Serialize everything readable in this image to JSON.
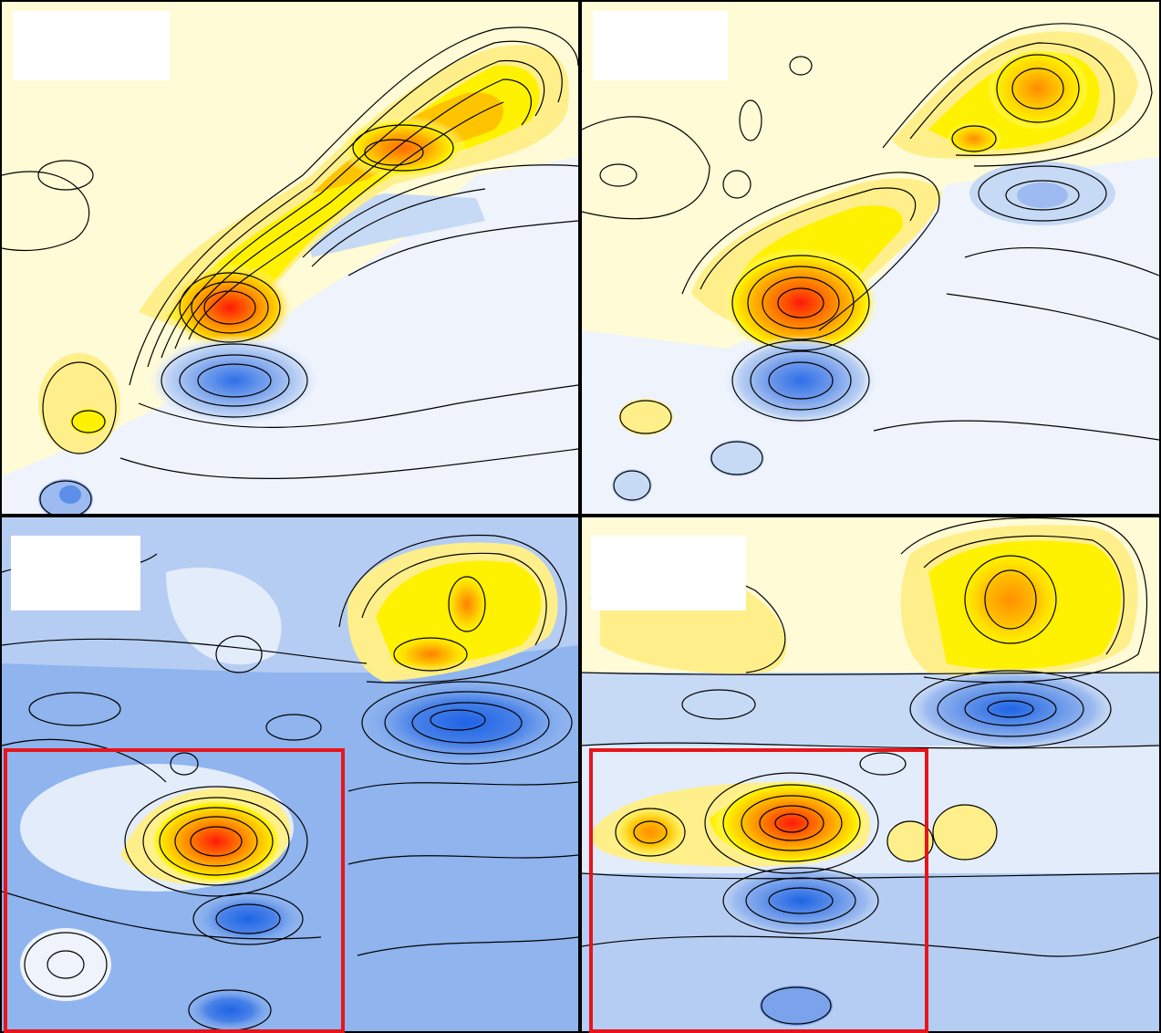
{
  "figure": {
    "panels": [
      {
        "id": "top-left",
        "background": "#fffbd6",
        "positive_peak_color": "#ff1a0a",
        "negative_peak_color": "#2e6fe8",
        "highlight_box": false
      },
      {
        "id": "top-right",
        "background": "#fffbd6",
        "positive_peak_color": "#ff1a0a",
        "negative_peak_color": "#2e6fe8",
        "highlight_box": false
      },
      {
        "id": "bottom-left",
        "background": "#8fb4ee",
        "positive_peak_color": "#ff1a0a",
        "negative_peak_color": "#2e6fe8",
        "highlight_box": true
      },
      {
        "id": "bottom-right",
        "background": "#c6d9f5",
        "positive_peak_color": "#ff1a0a",
        "negative_peak_color": "#2e6fe8",
        "highlight_box": true
      }
    ],
    "colors": {
      "contour_line": "#000000",
      "highlight_box": "#e8141b",
      "label_box": "#ffffff",
      "colormap": [
        "#1e5fe0",
        "#5d8fe8",
        "#9dbbf0",
        "#d3e2f8",
        "#f4f7fd",
        "#fffbd6",
        "#ffef8a",
        "#fff200",
        "#ffc400",
        "#ff9a00",
        "#ff5a00",
        "#ff1a0a"
      ]
    }
  }
}
